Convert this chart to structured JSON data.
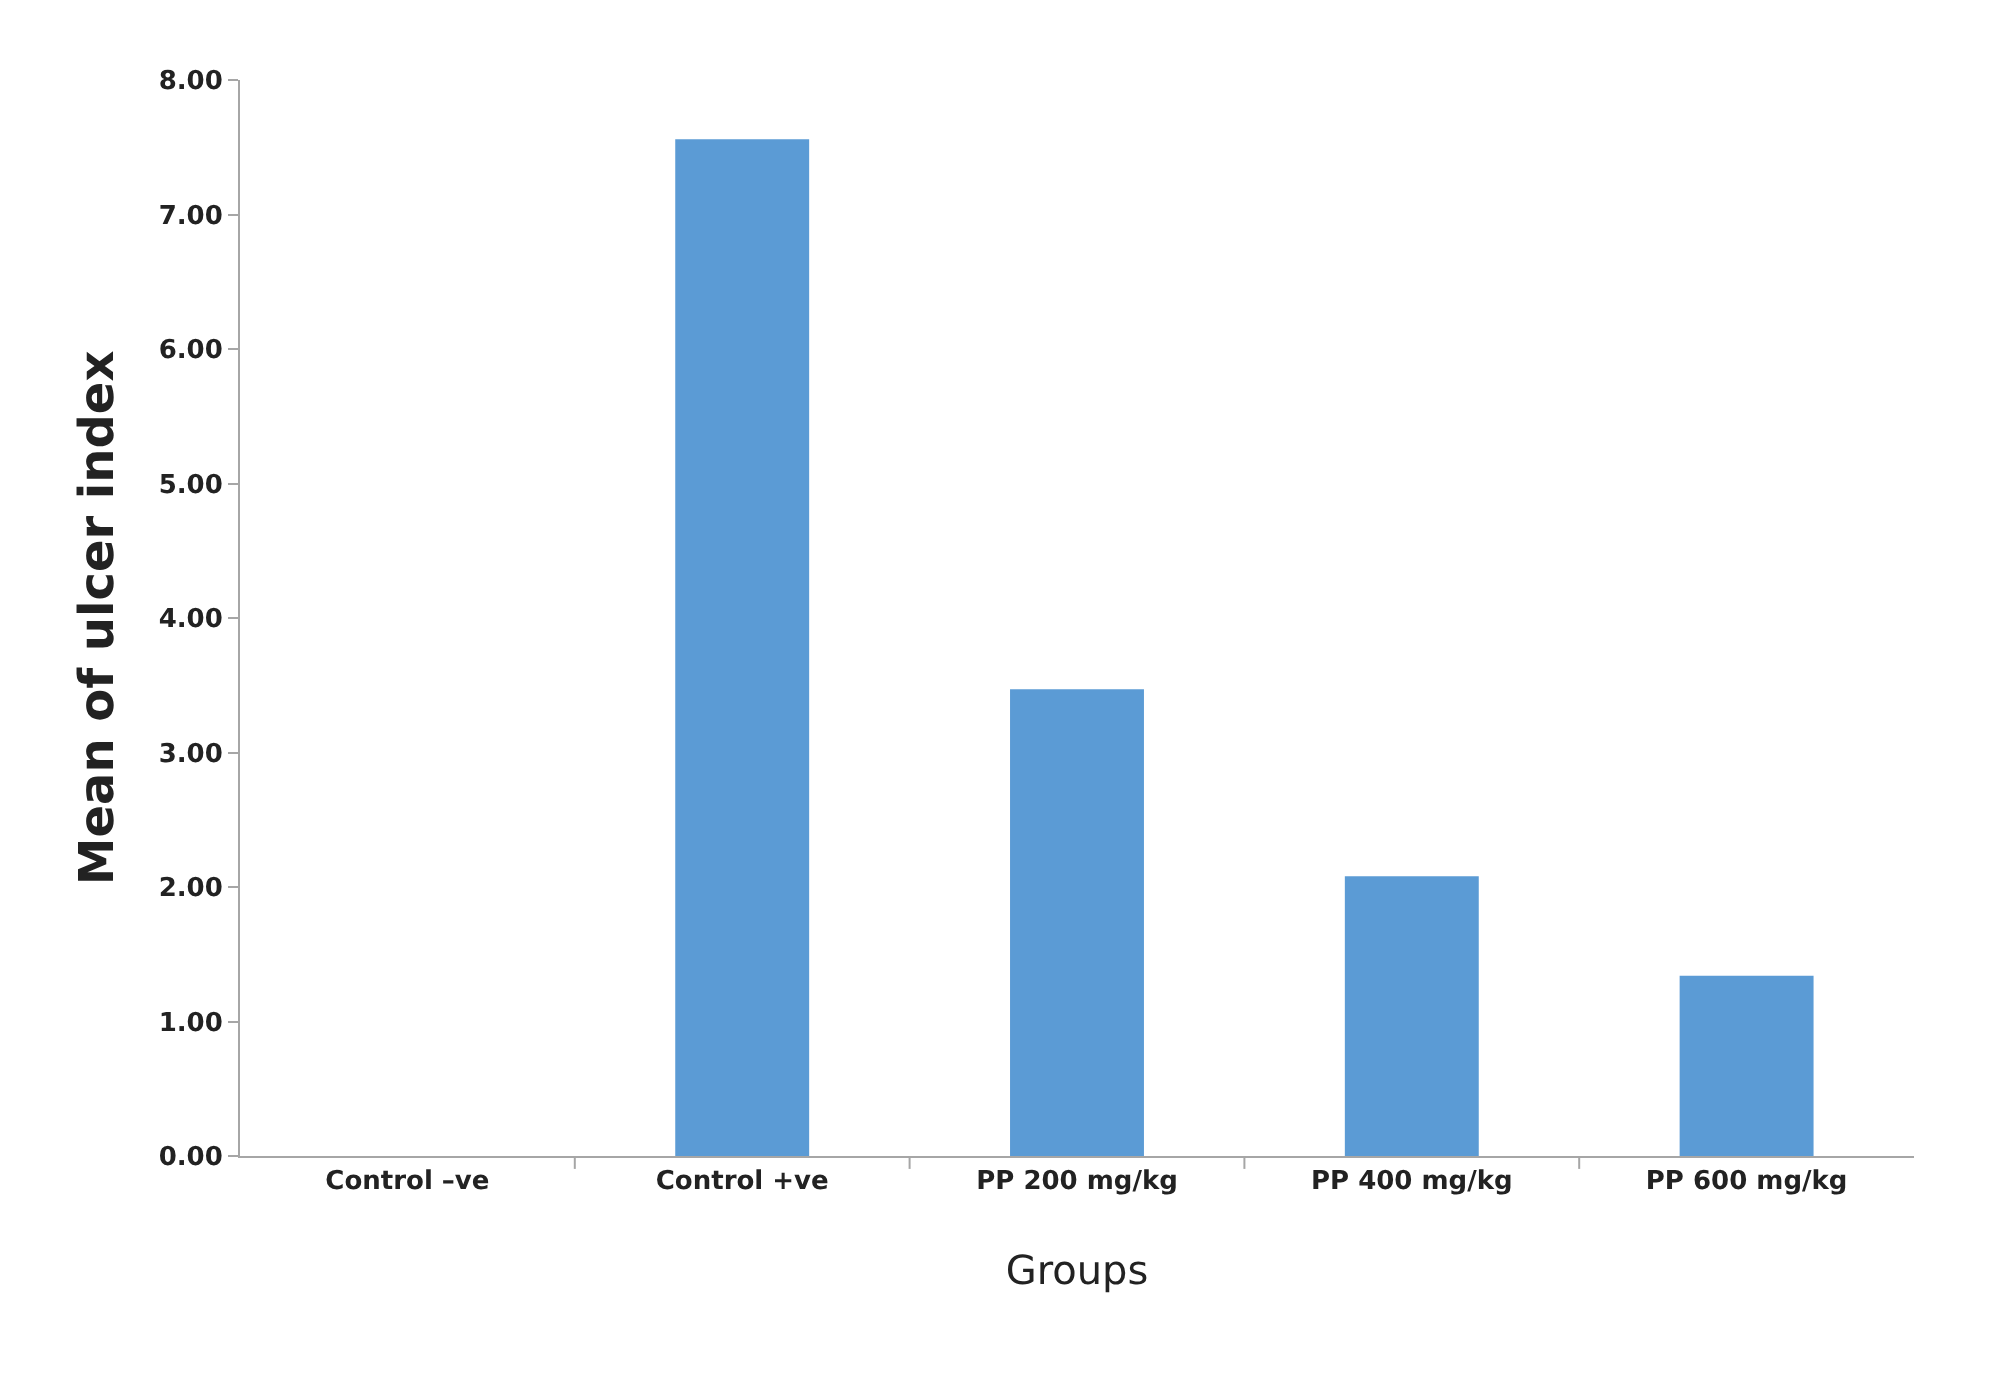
{
  "chart_data": {
    "type": "bar",
    "xlabel": "Groups",
    "ylabel": "Mean of ulcer index",
    "categories": [
      "Control –ve",
      "Control +ve",
      "PP 200 mg/kg",
      "PP 400 mg/kg",
      "PP 600 mg/kg"
    ],
    "values": [
      0,
      7.56,
      3.47,
      2.08,
      1.34
    ],
    "color": "#5b9bd5",
    "ylim": [
      0,
      8
    ],
    "yticks": [
      {
        "value": 0,
        "label": "0.00"
      },
      {
        "value": 1,
        "label": "1.00"
      },
      {
        "value": 2,
        "label": "2.00"
      },
      {
        "value": 3,
        "label": "3.00"
      },
      {
        "value": 4,
        "label": "4.00"
      },
      {
        "value": 5,
        "label": "5.00"
      },
      {
        "value": 6,
        "label": "6.00"
      },
      {
        "value": 7,
        "label": "7.00"
      },
      {
        "value": 8,
        "label": "8.00"
      }
    ]
  }
}
